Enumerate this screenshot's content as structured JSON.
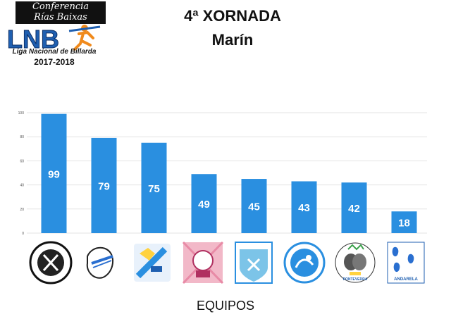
{
  "header": {
    "banner_line1": "Conferencia",
    "banner_line2": "Rías Baixas",
    "league_name": "Liga Nacional de Billarda",
    "logo_letters": "LNB",
    "season": "2017-2018"
  },
  "colors": {
    "bar": "#2a8fe0",
    "bar_label": "#ffffff",
    "grid": "#e3e3e3",
    "axis_text": "#555555"
  },
  "chart_data": {
    "type": "bar",
    "title": "4ª XORNADA",
    "subtitle": "Marín",
    "xlabel": "EQUIPOS",
    "ylabel": "",
    "ylim": [
      0,
      100
    ],
    "yticks": [
      0,
      20,
      40,
      60,
      80,
      100
    ],
    "grid": true,
    "values": [
      99,
      79,
      75,
      49,
      45,
      43,
      42,
      18
    ],
    "category_icons": [
      "team-logo-1-icon",
      "team-logo-2-icon",
      "team-logo-3-icon",
      "team-logo-4-icon",
      "team-logo-5-icon",
      "team-logo-6-icon",
      "team-logo-7-icon",
      "team-logo-8-icon"
    ],
    "logo_text": {
      "team7": "PONTEVEDRA",
      "team8": "ANDARELA"
    }
  }
}
